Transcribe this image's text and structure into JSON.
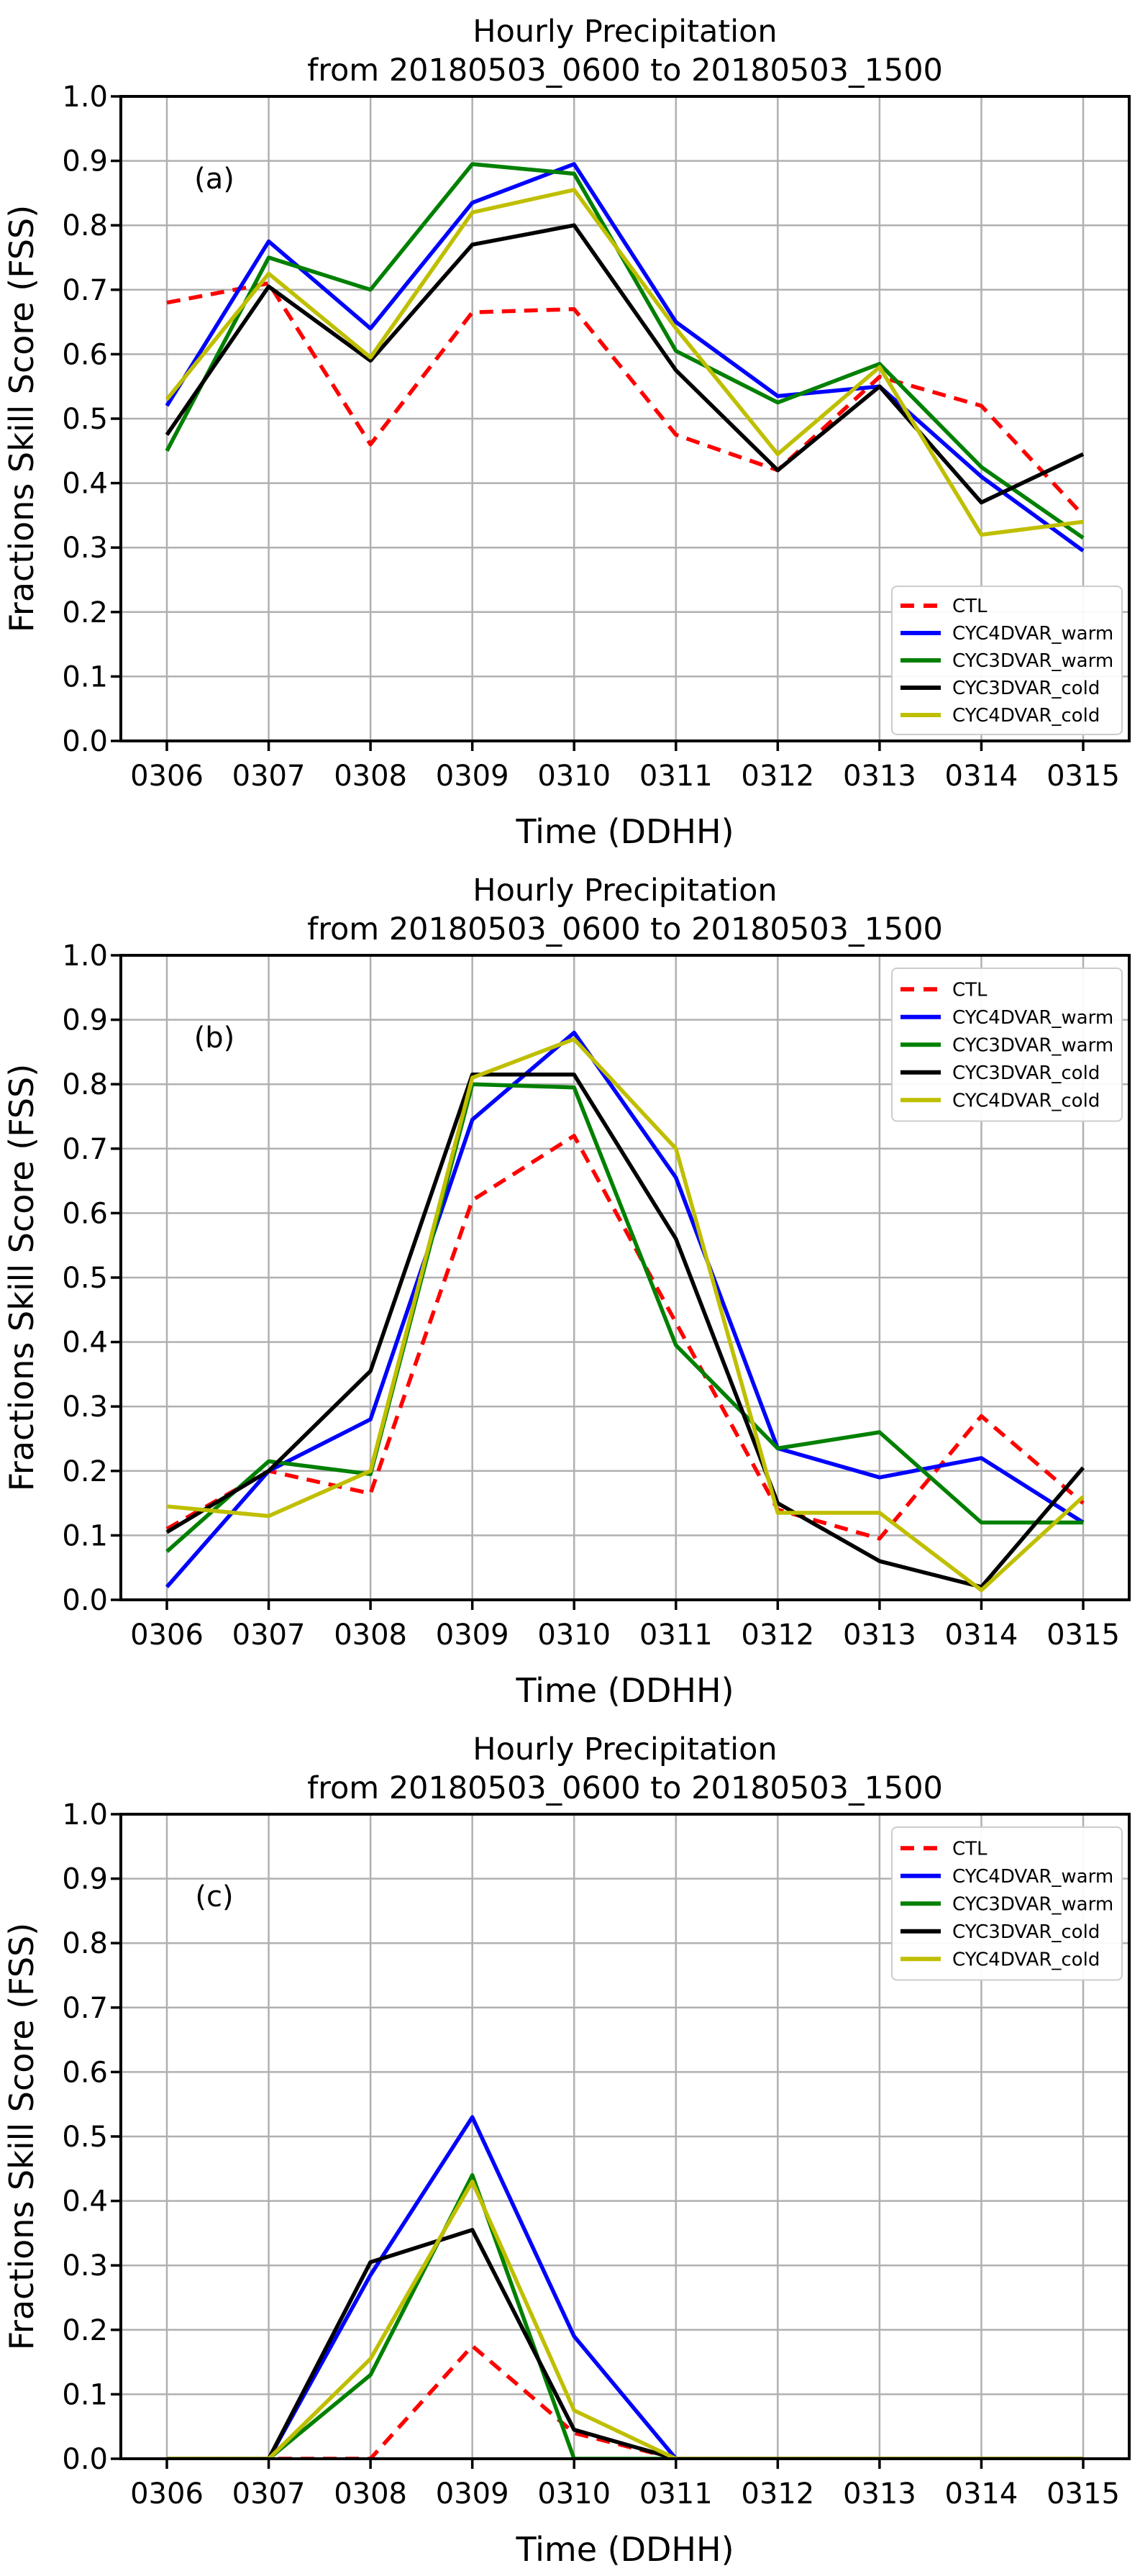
{
  "figure": {
    "title": "Hourly Precipitation",
    "subtitle": "from 20180503_0600 to 20180503_1500",
    "xlabel": "Time (DDHH)",
    "ylabel": "Fractions Skill Score (FSS)"
  },
  "colors": {
    "ctl": "#ff0000",
    "cyc4dvar_warm": "#0000ff",
    "cyc3dvar_warm": "#008000",
    "cyc3dvar_cold": "#000000",
    "cyc4dvar_cold": "#bfbf00",
    "grid": "#b0b0b0",
    "axis": "#000000",
    "legend_border": "#cccccc",
    "background": "#ffffff"
  },
  "chart_data": [
    {
      "type": "line",
      "panel_label": "(a)",
      "title": "Hourly Precipitation",
      "subtitle": "from 20180503_0600 to 20180503_1500",
      "xlabel": "Time (DDHH)",
      "ylabel": "Fractions Skill Score (FSS)",
      "categories": [
        "0306",
        "0307",
        "0308",
        "0309",
        "0310",
        "0311",
        "0312",
        "0313",
        "0314",
        "0315"
      ],
      "y_ticks": [
        "0.0",
        "0.1",
        "0.2",
        "0.3",
        "0.4",
        "0.5",
        "0.6",
        "0.7",
        "0.8",
        "0.9",
        "1.0"
      ],
      "ylim": [
        0.0,
        1.0
      ],
      "grid": true,
      "legend_position": "lower right",
      "series": [
        {
          "name": "CTL",
          "color": "#ff0000",
          "dashed": true,
          "values": [
            0.68,
            0.71,
            0.46,
            0.665,
            0.67,
            0.475,
            0.42,
            0.565,
            0.52,
            0.35
          ]
        },
        {
          "name": "CYC4DVAR_warm",
          "color": "#0000ff",
          "dashed": false,
          "values": [
            0.52,
            0.775,
            0.64,
            0.835,
            0.895,
            0.65,
            0.535,
            0.55,
            0.41,
            0.295
          ]
        },
        {
          "name": "CYC3DVAR_warm",
          "color": "#008000",
          "dashed": false,
          "values": [
            0.45,
            0.75,
            0.7,
            0.895,
            0.88,
            0.605,
            0.525,
            0.585,
            0.425,
            0.315
          ]
        },
        {
          "name": "CYC3DVAR_cold",
          "color": "#000000",
          "dashed": false,
          "values": [
            0.475,
            0.705,
            0.59,
            0.77,
            0.8,
            0.575,
            0.42,
            0.55,
            0.37,
            0.445
          ]
        },
        {
          "name": "CYC4DVAR_cold",
          "color": "#bfbf00",
          "dashed": false,
          "values": [
            0.53,
            0.725,
            0.595,
            0.82,
            0.855,
            0.64,
            0.445,
            0.58,
            0.32,
            0.34
          ]
        }
      ]
    },
    {
      "type": "line",
      "panel_label": "(b)",
      "title": "Hourly Precipitation",
      "subtitle": "from 20180503_0600 to 20180503_1500",
      "xlabel": "Time (DDHH)",
      "ylabel": "Fractions Skill Score (FSS)",
      "categories": [
        "0306",
        "0307",
        "0308",
        "0309",
        "0310",
        "0311",
        "0312",
        "0313",
        "0314",
        "0315"
      ],
      "y_ticks": [
        "0.0",
        "0.1",
        "0.2",
        "0.3",
        "0.4",
        "0.5",
        "0.6",
        "0.7",
        "0.8",
        "0.9",
        "1.0"
      ],
      "ylim": [
        0.0,
        1.0
      ],
      "grid": true,
      "legend_position": "upper right",
      "series": [
        {
          "name": "CTL",
          "color": "#ff0000",
          "dashed": true,
          "values": [
            0.11,
            0.2,
            0.165,
            0.62,
            0.72,
            0.43,
            0.14,
            0.095,
            0.285,
            0.15
          ]
        },
        {
          "name": "CYC4DVAR_warm",
          "color": "#0000ff",
          "dashed": false,
          "values": [
            0.02,
            0.2,
            0.28,
            0.745,
            0.88,
            0.655,
            0.235,
            0.19,
            0.22,
            0.12
          ]
        },
        {
          "name": "CYC3DVAR_warm",
          "color": "#008000",
          "dashed": false,
          "values": [
            0.075,
            0.215,
            0.195,
            0.8,
            0.795,
            0.395,
            0.235,
            0.26,
            0.12,
            0.12
          ]
        },
        {
          "name": "CYC3DVAR_cold",
          "color": "#000000",
          "dashed": false,
          "values": [
            0.105,
            0.2,
            0.355,
            0.815,
            0.815,
            0.56,
            0.15,
            0.06,
            0.02,
            0.205
          ]
        },
        {
          "name": "CYC4DVAR_cold",
          "color": "#bfbf00",
          "dashed": false,
          "values": [
            0.145,
            0.13,
            0.2,
            0.81,
            0.87,
            0.7,
            0.135,
            0.135,
            0.015,
            0.16
          ]
        }
      ]
    },
    {
      "type": "line",
      "panel_label": "(c)",
      "title": "Hourly Precipitation",
      "subtitle": "from 20180503_0600 to 20180503_1500",
      "xlabel": "Time (DDHH)",
      "ylabel": "Fractions Skill Score (FSS)",
      "categories": [
        "0306",
        "0307",
        "0308",
        "0309",
        "0310",
        "0311",
        "0312",
        "0313",
        "0314",
        "0315"
      ],
      "y_ticks": [
        "0.0",
        "0.1",
        "0.2",
        "0.3",
        "0.4",
        "0.5",
        "0.6",
        "0.7",
        "0.8",
        "0.9",
        "1.0"
      ],
      "ylim": [
        0.0,
        1.0
      ],
      "grid": true,
      "legend_position": "upper right",
      "series": [
        {
          "name": "CTL",
          "color": "#ff0000",
          "dashed": true,
          "values": [
            0.0,
            0.0,
            0.0,
            0.175,
            0.04,
            0.0,
            0.0,
            0.0,
            0.0,
            0.0
          ]
        },
        {
          "name": "CYC4DVAR_warm",
          "color": "#0000ff",
          "dashed": false,
          "values": [
            0.0,
            0.0,
            0.285,
            0.53,
            0.19,
            0.0,
            0.0,
            0.0,
            0.0,
            0.0
          ]
        },
        {
          "name": "CYC3DVAR_warm",
          "color": "#008000",
          "dashed": false,
          "values": [
            0.0,
            0.0,
            0.13,
            0.44,
            0.0,
            0.0,
            0.0,
            0.0,
            0.0,
            0.0
          ]
        },
        {
          "name": "CYC3DVAR_cold",
          "color": "#000000",
          "dashed": false,
          "values": [
            0.0,
            0.0,
            0.305,
            0.355,
            0.045,
            0.0,
            0.0,
            0.0,
            0.0,
            0.0
          ]
        },
        {
          "name": "CYC4DVAR_cold",
          "color": "#bfbf00",
          "dashed": false,
          "values": [
            0.0,
            0.0,
            0.155,
            0.43,
            0.075,
            0.0,
            0.0,
            0.0,
            0.0,
            0.0
          ]
        }
      ]
    }
  ]
}
